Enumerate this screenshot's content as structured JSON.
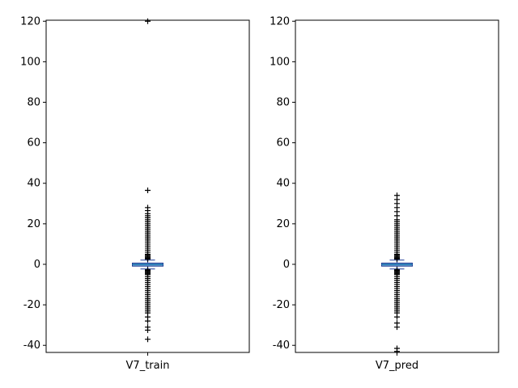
{
  "chart_data": [
    {
      "type": "box",
      "category": "V7_train",
      "xlabel": "V7_train",
      "ylim": [
        -43.5,
        120.5
      ],
      "yticks": [
        -40,
        -20,
        0,
        20,
        40,
        60,
        80,
        100,
        120
      ],
      "box": {
        "q1": -0.9,
        "median": -0.1,
        "q3": 0.6,
        "whisker_low": -2.3,
        "whisker_high": 2.1
      },
      "outliers": [
        120,
        36.5,
        28,
        26.5,
        25,
        24,
        23,
        22,
        21,
        20,
        19,
        18,
        17,
        16,
        15,
        14,
        13,
        12,
        11,
        10,
        9,
        8,
        7,
        6,
        5,
        4.5,
        4,
        3.5,
        3,
        2.6,
        -2.7,
        -3,
        -3.5,
        -4,
        -4.5,
        -5,
        -6,
        -7,
        -8,
        -9,
        -10,
        -11,
        -12,
        -13,
        -14,
        -15,
        -16,
        -17,
        -18,
        -19,
        -20,
        -21,
        -22,
        -23,
        -24,
        -26,
        -28,
        -31,
        -32.5,
        -37
      ]
    },
    {
      "type": "box",
      "category": "V7_pred",
      "xlabel": "V7_pred",
      "ylim": [
        -43.5,
        120.5
      ],
      "yticks": [
        -40,
        -20,
        0,
        20,
        40,
        60,
        80,
        100,
        120
      ],
      "box": {
        "q1": -0.9,
        "median": -0.1,
        "q3": 0.6,
        "whisker_low": -2.3,
        "whisker_high": 2.1
      },
      "outliers": [
        34,
        32,
        30,
        28,
        26,
        24,
        22,
        21,
        20,
        19,
        18,
        17,
        16,
        15,
        14,
        13,
        12,
        11,
        10,
        9,
        8,
        7,
        6,
        5,
        4.5,
        4,
        3.5,
        3,
        2.6,
        -2.7,
        -3,
        -3.5,
        -4,
        -4.5,
        -5,
        -6,
        -7,
        -8,
        -9,
        -10,
        -11,
        -12,
        -13,
        -14,
        -15,
        -16,
        -17,
        -18,
        -19,
        -20,
        -21,
        -22,
        -23,
        -24,
        -26,
        -29,
        -31,
        -41.5,
        -43
      ]
    }
  ],
  "style": {
    "box_fill": "#74a9cf",
    "box_edge": "#1f3a93",
    "median_color": "#1f77b4",
    "whisker_color": "#1f3a93",
    "flier_color": "#000000"
  }
}
